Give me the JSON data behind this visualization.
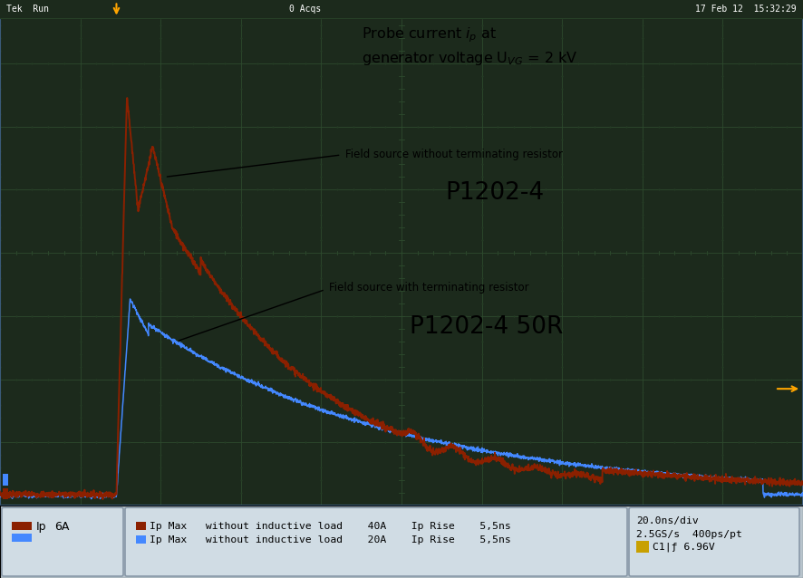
{
  "screen_bg": "#1c2a1c",
  "grid_color": "#2d4a2d",
  "grid_minor_color": "#253d25",
  "header_bg": "#1c2a1c",
  "text_color": "#000000",
  "text_color_header": "#ffffff",
  "red_color": "#8B2000",
  "blue_color": "#4488ff",
  "orange_color": "#cc8800",
  "footer_bg": "#b8c4cc",
  "footer_box_bg": "#d0dce4",
  "footer_box_border": "#8898a8",
  "fig_bg": "#2a3a4a",
  "screen_border": "#3a5a7a",
  "title_line1": "Probe current $i_p$ at",
  "title_line2": "generator voltage U$_{VG}$ = 2 kV",
  "label_without": "Field source without terminating resistor",
  "label_p1202_4": "P1202-4",
  "label_with": "Field source with terminating resistor",
  "label_p1202_4_50r": "P1202-4 50R",
  "header_left": "Tek  Run",
  "header_center": "0 Acqs",
  "header_right": "17 Feb 12  15:32:29",
  "footer_row1": "Ip Max   without inductive load    40A    Ip Rise    5,5ns",
  "footer_row2": "Ip Max   without inductive load    20A    Ip Rise    5,5ns",
  "footer_settings": [
    "20.0ns/div",
    "2.5GS/s  400ps/pt",
    "C1|ƒ 6.96V"
  ],
  "figw": 8.86,
  "figh": 6.38,
  "dpi": 100
}
